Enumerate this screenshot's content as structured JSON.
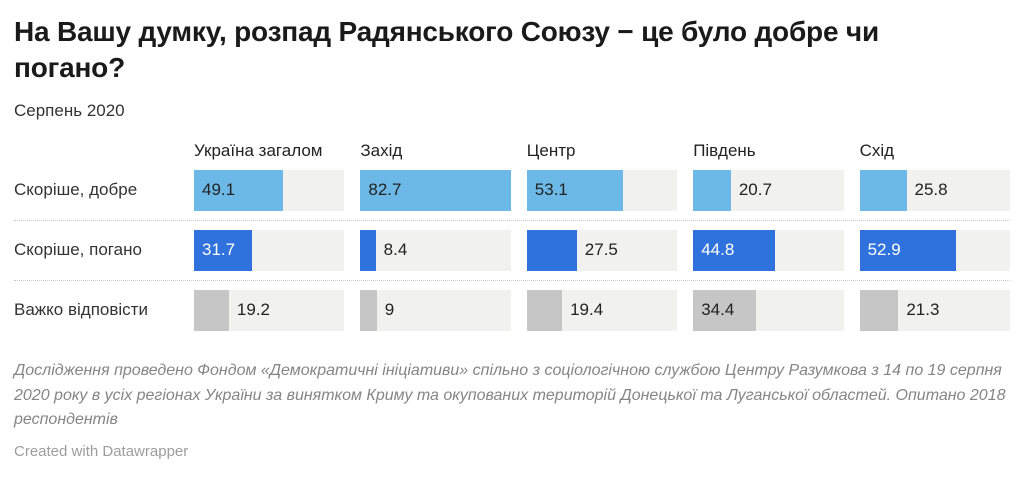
{
  "title": "На Вашу думку, розпад Радянського Союзу − це було добре чи погано?",
  "subtitle": "Серпень 2020",
  "chart_data": {
    "type": "bar",
    "layout": "split-bars-table",
    "scale_max": 82.7,
    "cell_background": "#f1f1f0",
    "columns": [
      "Україна загалом",
      "Захід",
      "Центр",
      "Південь",
      "Схід"
    ],
    "rows": [
      {
        "label": "Скоріше, добре",
        "color": "#6cb9e8",
        "label_color_inside": "#222222",
        "values": [
          49.1,
          82.7,
          53.1,
          20.7,
          25.8
        ]
      },
      {
        "label": "Скоріше, погано",
        "color": "#3072dd",
        "label_color_inside": "#ffffff",
        "values": [
          31.7,
          8.4,
          27.5,
          44.8,
          52.9
        ]
      },
      {
        "label": "Важко відповісти",
        "color": "#c6c6c6",
        "label_color_inside": "#222222",
        "values": [
          19.2,
          9,
          19.4,
          34.4,
          21.3
        ]
      }
    ],
    "label_color_outside": "#222222"
  },
  "footer": {
    "notes": "Дослідження проведено Фондом «Демократичні ініціативи» спільно з соціологічною службою Центру Разумкова з 14 по 19 серпня 2020 року в усіх регіонах України за винятком Криму та окупованих територій Донецької та Луганської областей. Опитано 2018 респондентів",
    "attribution": "Created with Datawrapper"
  }
}
